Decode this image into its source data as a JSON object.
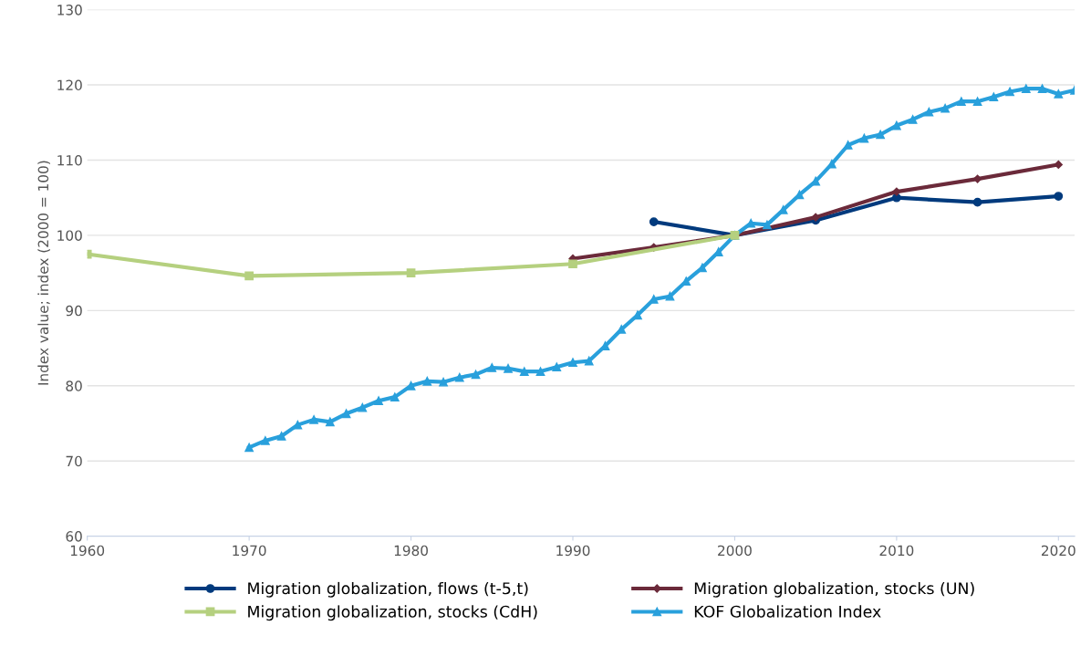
{
  "chart_data": {
    "type": "line",
    "ylabel": "Index value; index (2000 = 100)",
    "xlim": [
      1960,
      2021
    ],
    "xticks": [
      1960,
      1970,
      1980,
      1990,
      2000,
      2010,
      2020
    ],
    "ylim": [
      60,
      130
    ],
    "yticks": [
      60,
      70,
      80,
      90,
      100,
      110,
      120,
      130
    ],
    "grid": "y",
    "legend": "bottom",
    "series": [
      {
        "name": "Migration globalization, flows (t-5,t)",
        "color": "#003a7d",
        "marker": "circle",
        "x": [
          1995,
          2000,
          2005,
          2010,
          2015,
          2020
        ],
        "values": [
          101.8,
          100,
          102.0,
          105.0,
          104.4,
          105.2
        ]
      },
      {
        "name": "Migration globalization, stocks (UN)",
        "color": "#6b2a3a",
        "marker": "diamond",
        "x": [
          1990,
          1995,
          2000,
          2005,
          2010,
          2015,
          2020
        ],
        "values": [
          96.9,
          98.4,
          100,
          102.4,
          105.8,
          107.5,
          109.4
        ]
      },
      {
        "name": "Migration globalization, stocks (CdH)",
        "color": "#b5d07f",
        "marker": "square",
        "x": [
          1960,
          1970,
          1980,
          1990,
          2000
        ],
        "values": [
          97.5,
          94.6,
          95.0,
          96.2,
          100
        ]
      },
      {
        "name": "KOF Globalization Index",
        "color": "#29a0dc",
        "marker": "triangle",
        "x": [
          1970,
          1971,
          1972,
          1973,
          1974,
          1975,
          1976,
          1977,
          1978,
          1979,
          1980,
          1981,
          1982,
          1983,
          1984,
          1985,
          1986,
          1987,
          1988,
          1989,
          1990,
          1991,
          1992,
          1993,
          1994,
          1995,
          1996,
          1997,
          1998,
          1999,
          2000,
          2001,
          2002,
          2003,
          2004,
          2005,
          2006,
          2007,
          2008,
          2009,
          2010,
          2011,
          2012,
          2013,
          2014,
          2015,
          2016,
          2017,
          2018,
          2019,
          2020,
          2021
        ],
        "values": [
          71.8,
          72.7,
          73.3,
          74.8,
          75.5,
          75.2,
          76.3,
          77.1,
          78.0,
          78.5,
          80.0,
          80.6,
          80.5,
          81.1,
          81.5,
          82.4,
          82.3,
          81.9,
          81.9,
          82.5,
          83.1,
          83.3,
          85.3,
          87.5,
          89.4,
          91.5,
          91.9,
          93.9,
          95.7,
          97.8,
          100,
          101.6,
          101.4,
          103.4,
          105.4,
          107.2,
          109.5,
          112.0,
          112.9,
          113.4,
          114.6,
          115.4,
          116.4,
          116.9,
          117.8,
          117.8,
          118.4,
          119.1,
          119.5,
          119.5,
          118.8,
          119.3
        ]
      }
    ]
  }
}
